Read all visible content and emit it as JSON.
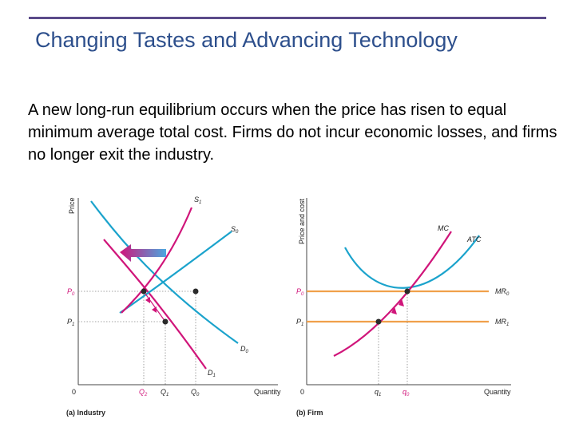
{
  "slide": {
    "title": "Changing Tastes and Advancing Technology",
    "body": "A new long-run equilibrium occurs when the price has risen to equal minimum average total cost. Firms do not incur economic losses, and firms no longer exit the industry."
  },
  "industry_graph": {
    "y_axis_label": "Price",
    "x_axis_label": "Quantity",
    "origin": "0",
    "price_labels": [
      "P",
      "P"
    ],
    "price_subs": [
      "0",
      "1"
    ],
    "quantity_labels": [
      "Q",
      "Q",
      "Q"
    ],
    "quantity_subs": [
      "2",
      "1",
      "0"
    ],
    "curve_labels": [
      "S",
      "S",
      "D",
      "D"
    ],
    "curve_subs": [
      "1",
      "0",
      "0",
      "1"
    ],
    "caption": "(a) Industry"
  },
  "firm_graph": {
    "y_axis_label": "Price and cost",
    "x_axis_label": "Quantity",
    "origin": "0",
    "price_labels": [
      "P",
      "P"
    ],
    "price_subs": [
      "0",
      "1"
    ],
    "quantity_labels": [
      "q",
      "q"
    ],
    "quantity_subs": [
      "1",
      "0"
    ],
    "curve_labels": [
      "MC",
      "ATC",
      "MR",
      "MR"
    ],
    "curve_subs": [
      "",
      "",
      "0",
      "1"
    ],
    "caption": "(b) Firm"
  },
  "colors": {
    "title": "#2d4f8c",
    "rule": "#5b4b8a",
    "supply_new": "#d0157a",
    "demand_and_cost": "#1ba3cc",
    "marginal_revenue": "#f0a04b"
  }
}
